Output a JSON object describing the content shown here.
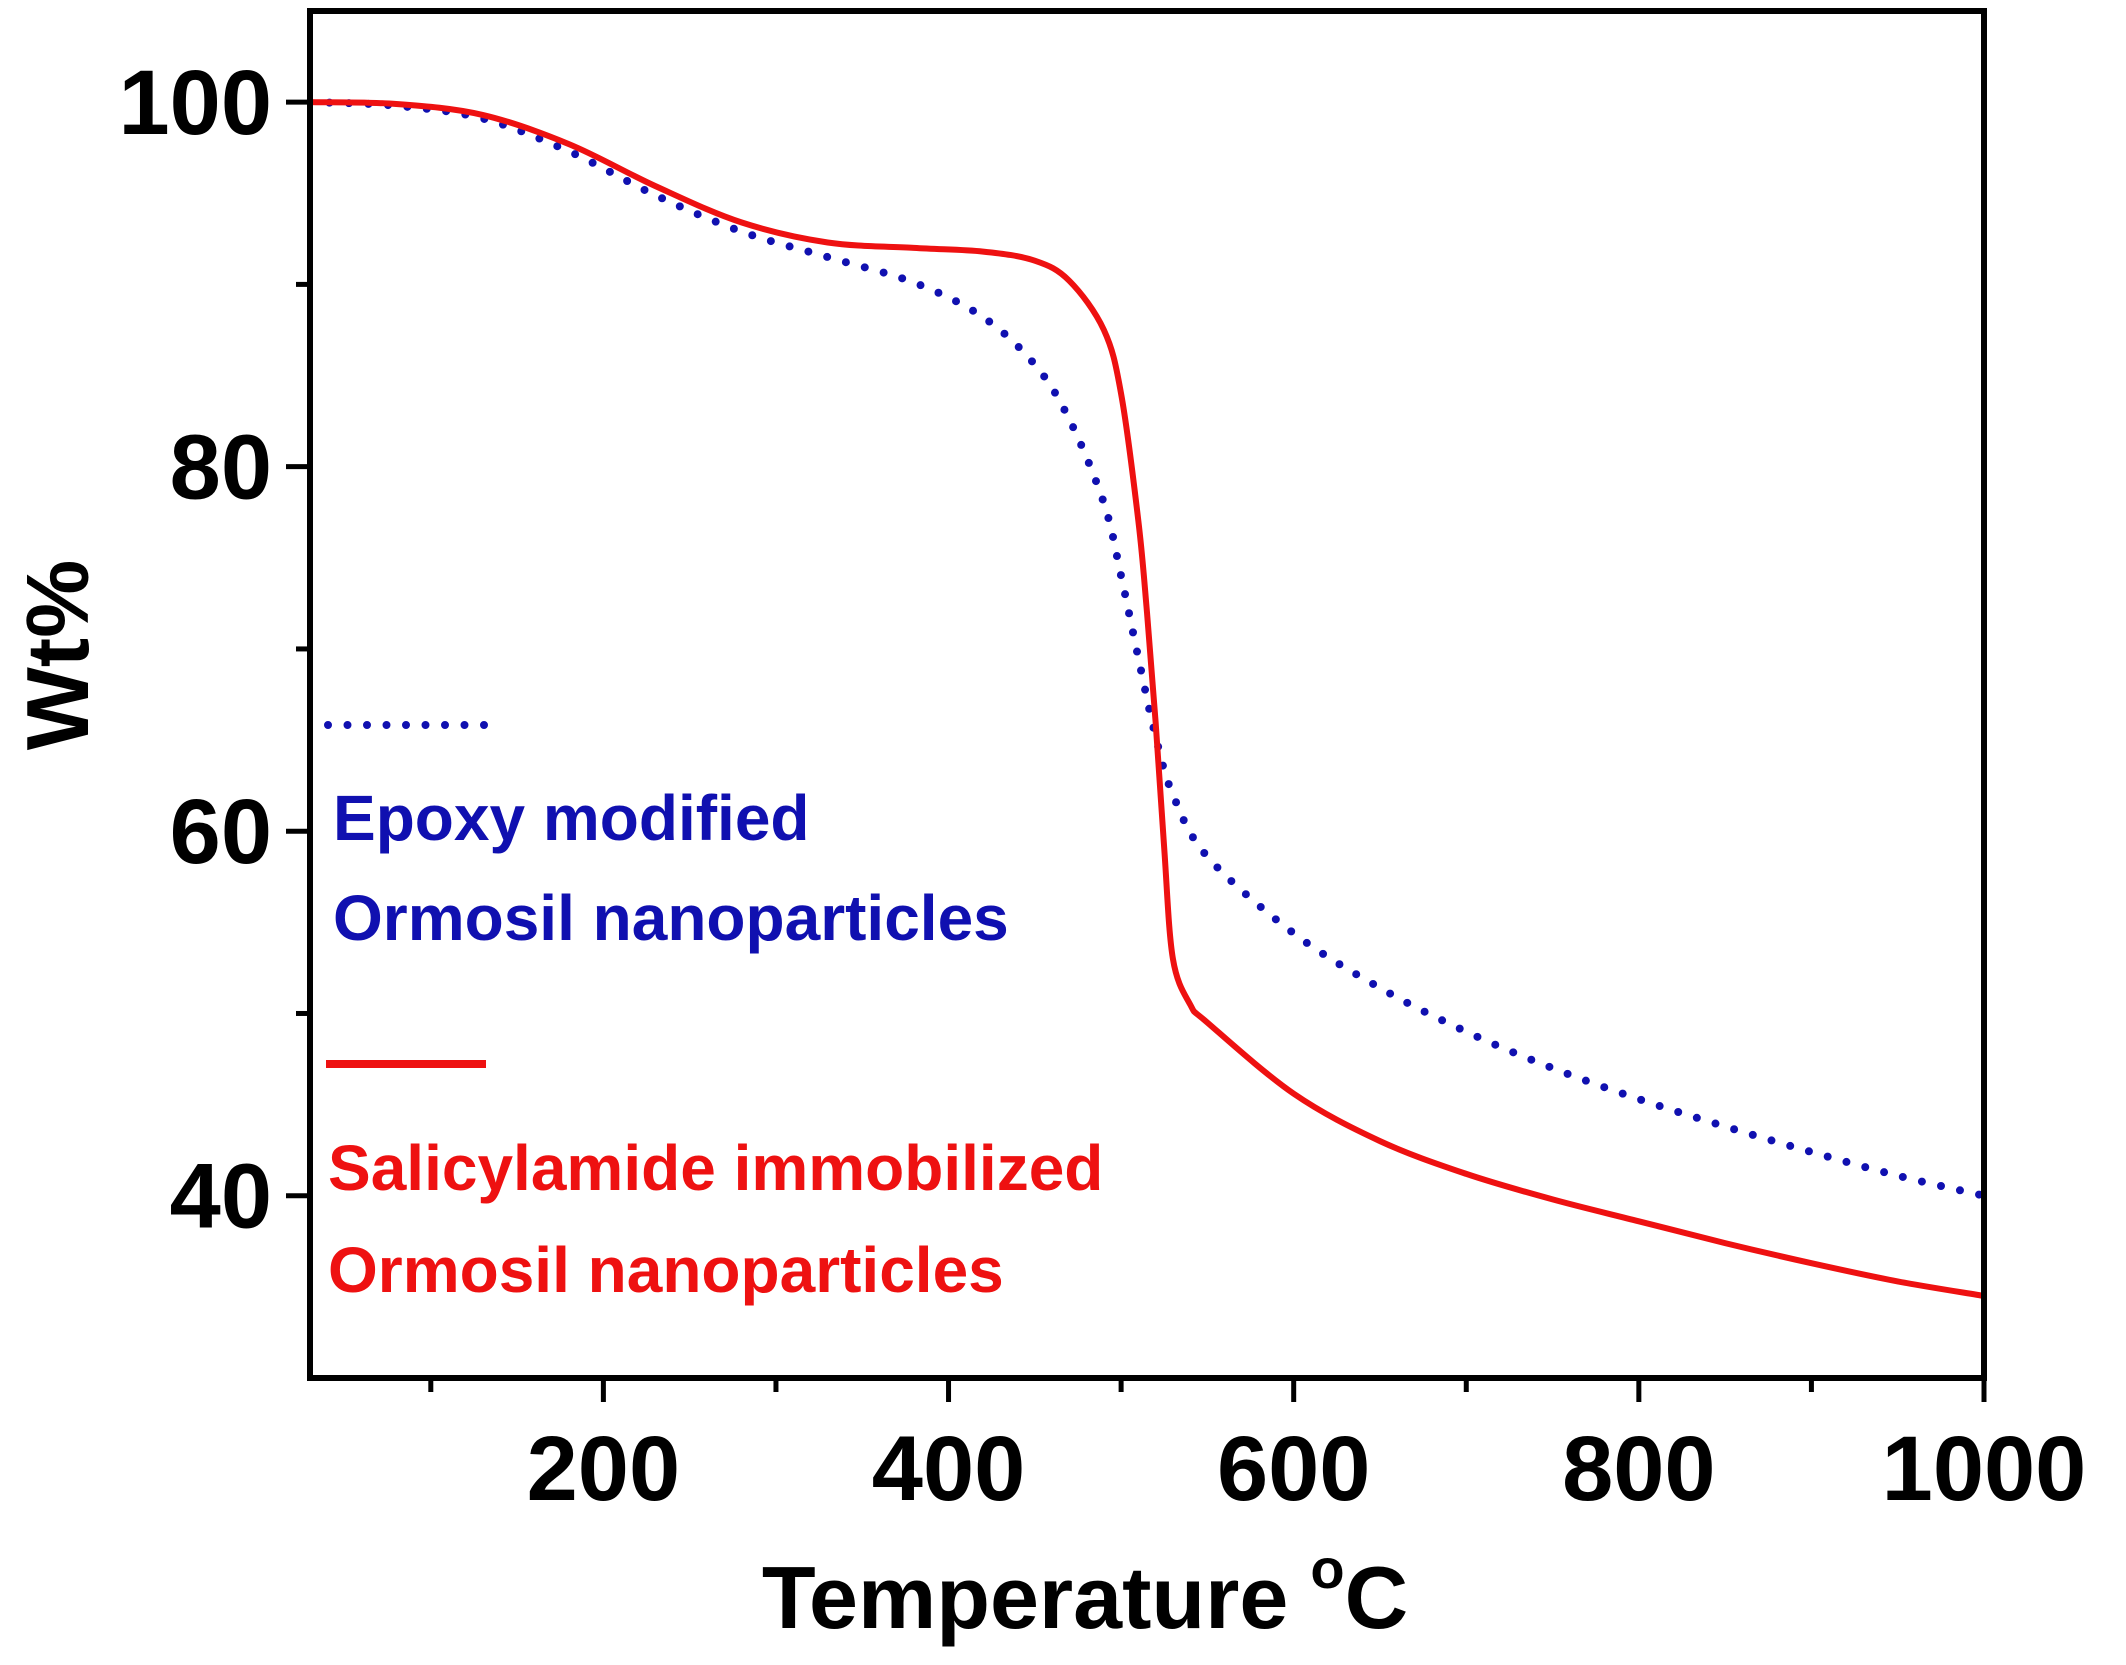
{
  "chart_data": {
    "type": "line",
    "xlabel": "Temperature",
    "xlabel_unit_sup": "o",
    "xlabel_unit": "C",
    "ylabel": "Wt%",
    "xlim": [
      30,
      1000
    ],
    "ylim": [
      30,
      105
    ],
    "x_ticks": [
      200,
      400,
      600,
      800,
      1000
    ],
    "x_tick_labels": [
      "200",
      "400",
      "600",
      "800",
      "1000"
    ],
    "x_minor_ticks": [
      100,
      300,
      500,
      700,
      900
    ],
    "y_ticks": [
      40,
      60,
      80,
      100
    ],
    "y_tick_labels": [
      "40",
      "60",
      "80",
      "100"
    ],
    "y_minor_ticks": [
      50,
      70,
      90
    ],
    "grid": false,
    "legend_position": "left",
    "series": [
      {
        "name": "Epoxy modified Ormosil nanoparticles",
        "legend_lines": [
          "Epoxy modified",
          "Ormosil nanoparticles"
        ],
        "color": "#1010b0",
        "style": "dotted",
        "x": [
          30,
          80,
          130,
          180,
          230,
          280,
          330,
          380,
          420,
          450,
          470,
          490,
          500,
          510,
          520,
          530,
          550,
          600,
          650,
          700,
          750,
          800,
          850,
          900,
          950,
          1000
        ],
        "y": [
          100,
          99.8,
          99.1,
          97.3,
          94.9,
          92.9,
          91.5,
          90.1,
          88.2,
          85.6,
          82.6,
          78.0,
          74.0,
          69.5,
          65.2,
          62.0,
          58.6,
          54.4,
          51.4,
          49.0,
          47.0,
          45.3,
          43.8,
          42.4,
          41.1,
          40.0
        ]
      },
      {
        "name": "Salicylamide immobilized Ormosil nanoparticles",
        "legend_lines": [
          "Salicylamide immobilized",
          "Ormosil nanoparticles"
        ],
        "color": "#ee1111",
        "style": "solid",
        "x": [
          30,
          80,
          130,
          180,
          230,
          280,
          330,
          380,
          420,
          450,
          470,
          490,
          500,
          510,
          515,
          520,
          525,
          530,
          540,
          550,
          600,
          650,
          700,
          750,
          800,
          850,
          900,
          950,
          1000
        ],
        "y": [
          100,
          99.9,
          99.3,
          97.7,
          95.4,
          93.4,
          92.3,
          92.0,
          91.8,
          91.3,
          90.2,
          87.5,
          84.0,
          77.0,
          72.0,
          66.0,
          59.0,
          53.0,
          50.5,
          49.5,
          45.6,
          43.0,
          41.2,
          39.8,
          38.6,
          37.4,
          36.3,
          35.3,
          34.5
        ]
      }
    ]
  }
}
